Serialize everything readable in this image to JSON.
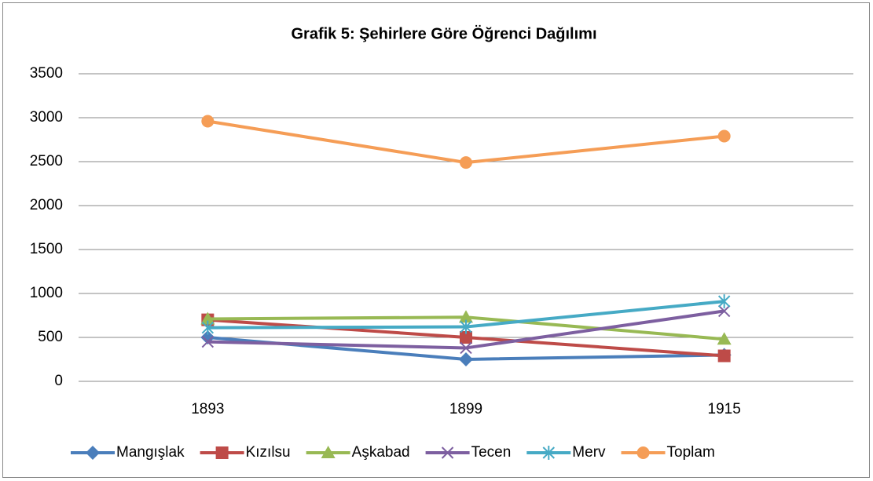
{
  "chart_data": {
    "type": "line",
    "title": "Grafik 5: Şehirlere Göre Öğrenci Dağılımı",
    "categories": [
      "1893",
      "1899",
      "1915"
    ],
    "series": [
      {
        "name": "Mangışlak",
        "color": "#4a7ebb",
        "marker": "diamond",
        "values": [
          500,
          250,
          300
        ]
      },
      {
        "name": "Kızılsu",
        "color": "#be4b48",
        "marker": "square",
        "values": [
          700,
          500,
          290
        ]
      },
      {
        "name": "Aşkabad",
        "color": "#98b954",
        "marker": "triangle",
        "values": [
          710,
          730,
          480
        ]
      },
      {
        "name": "Tecen",
        "color": "#7d5fa0",
        "marker": "x",
        "values": [
          450,
          380,
          800
        ]
      },
      {
        "name": "Merv",
        "color": "#46aac5",
        "marker": "star",
        "values": [
          610,
          620,
          910
        ]
      },
      {
        "name": "Toplam",
        "color": "#f59d56",
        "marker": "circle",
        "values": [
          2960,
          2490,
          2790
        ]
      }
    ],
    "ylim": [
      0,
      3500
    ],
    "yticks": [
      0,
      500,
      1000,
      1500,
      2000,
      2500,
      3000,
      3500
    ],
    "grid": true,
    "legend": "bottom"
  }
}
